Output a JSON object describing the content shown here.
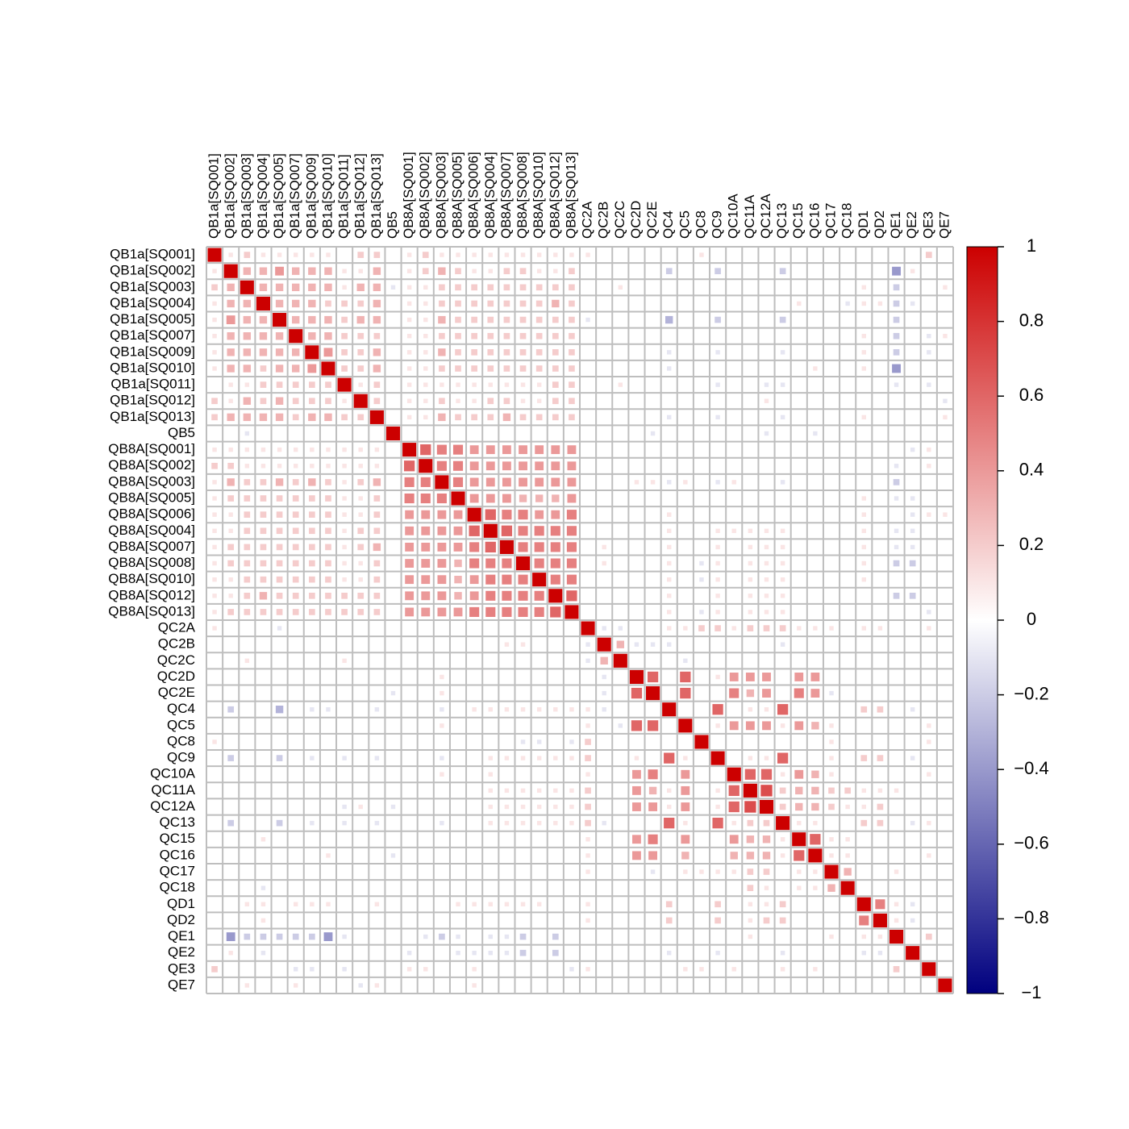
{
  "chart_data": {
    "type": "correlogram",
    "labels": [
      "QB1a[SQ001]",
      "QB1a[SQ002]",
      "QB1a[SQ003]",
      "QB1a[SQ004]",
      "QB1a[SQ005]",
      "QB1a[SQ007]",
      "QB1a[SQ009]",
      "QB1a[SQ010]",
      "QB1a[SQ011]",
      "QB1a[SQ012]",
      "QB1a[SQ013]",
      "QB5",
      "QB8A[SQ001]",
      "QB8A[SQ002]",
      "QB8A[SQ003]",
      "QB8A[SQ005]",
      "QB8A[SQ006]",
      "QB8A[SQ004]",
      "QB8A[SQ007]",
      "QB8A[SQ008]",
      "QB8A[SQ010]",
      "QB8A[SQ012]",
      "QB8A[SQ013]",
      "QC2A",
      "QC2B",
      "QC2C",
      "QC2D",
      "QC2E",
      "QC4",
      "QC5",
      "QC8",
      "QC9",
      "QC10A",
      "QC11A",
      "QC12A",
      "QC13",
      "QC15",
      "QC16",
      "QC17",
      "QC18",
      "QD1",
      "QD2",
      "QE1",
      "QE2",
      "QE3",
      "QE7"
    ],
    "values": [
      [
        1
      ],
      [
        0.1,
        1
      ],
      [
        0.2,
        0.3,
        1
      ],
      [
        0.1,
        0.3,
        0.3,
        1
      ],
      [
        0.1,
        0.4,
        0.3,
        0.3,
        1
      ],
      [
        0.1,
        0.3,
        0.3,
        0.3,
        0.3,
        1
      ],
      [
        0.1,
        0.3,
        0.3,
        0.3,
        0.3,
        0.3,
        1
      ],
      [
        0.1,
        0.3,
        0.3,
        0.2,
        0.3,
        0.3,
        0.4,
        1
      ],
      [
        0,
        0.1,
        0.1,
        0.2,
        0.2,
        0.2,
        0.2,
        0.2,
        1
      ],
      [
        0.2,
        0.1,
        0.3,
        0.2,
        0.3,
        0.2,
        0.2,
        0.2,
        0.1,
        1
      ],
      [
        0.2,
        0.3,
        0.3,
        0.3,
        0.3,
        0.2,
        0.3,
        0.3,
        0.2,
        0.2,
        1
      ],
      [
        0,
        0,
        -0.1,
        0,
        0,
        0,
        0,
        0,
        0,
        0,
        0,
        1
      ],
      [
        0.1,
        0.1,
        0.1,
        0.1,
        0.1,
        0.1,
        0.1,
        0.1,
        0.1,
        0.1,
        0.1,
        0,
        1
      ],
      [
        0.2,
        0.2,
        0.1,
        0.1,
        0.1,
        0.1,
        0.1,
        0.1,
        0.1,
        0.1,
        0.1,
        0,
        0.6,
        1
      ],
      [
        0.1,
        0.3,
        0.2,
        0.2,
        0.3,
        0.2,
        0.3,
        0.2,
        0.1,
        0.2,
        0.3,
        0,
        0.5,
        0.5,
        1
      ],
      [
        0.1,
        0.2,
        0.2,
        0.2,
        0.2,
        0.2,
        0.2,
        0.2,
        0.1,
        0.1,
        0.2,
        0,
        0.5,
        0.5,
        0.5,
        1
      ],
      [
        0.1,
        0.1,
        0.2,
        0.2,
        0.2,
        0.2,
        0.2,
        0.2,
        0.1,
        0.1,
        0.2,
        0,
        0.4,
        0.4,
        0.4,
        0.4,
        1
      ],
      [
        0.1,
        0.1,
        0.2,
        0.2,
        0.2,
        0.2,
        0.2,
        0.2,
        0.1,
        0.2,
        0.2,
        0,
        0.4,
        0.4,
        0.4,
        0.4,
        0.6,
        1
      ],
      [
        0.1,
        0.2,
        0.2,
        0.2,
        0.2,
        0.2,
        0.2,
        0.2,
        0.1,
        0.2,
        0.3,
        0,
        0.4,
        0.4,
        0.4,
        0.4,
        0.5,
        0.6,
        1
      ],
      [
        0.1,
        0.2,
        0.2,
        0.2,
        0.2,
        0.2,
        0.2,
        0.2,
        0.1,
        0.1,
        0.2,
        0,
        0.4,
        0.4,
        0.4,
        0.3,
        0.5,
        0.5,
        0.5,
        1
      ],
      [
        0.1,
        0.1,
        0.2,
        0.2,
        0.2,
        0.2,
        0.2,
        0.2,
        0.1,
        0.1,
        0.2,
        0,
        0.4,
        0.4,
        0.4,
        0.3,
        0.4,
        0.5,
        0.5,
        0.5,
        1
      ],
      [
        0.1,
        0.1,
        0.2,
        0.3,
        0.2,
        0.2,
        0.2,
        0.2,
        0.2,
        0.2,
        0.2,
        0,
        0.4,
        0.4,
        0.4,
        0.3,
        0.4,
        0.5,
        0.5,
        0.5,
        0.5,
        1
      ],
      [
        0.1,
        0.2,
        0.2,
        0.2,
        0.2,
        0.2,
        0.2,
        0.2,
        0.2,
        0.2,
        0.2,
        0,
        0.4,
        0.4,
        0.4,
        0.4,
        0.5,
        0.5,
        0.5,
        0.5,
        0.5,
        0.6,
        1
      ],
      [
        0.1,
        0,
        0,
        0,
        -0.1,
        0,
        0,
        0,
        0,
        0,
        0,
        0,
        0,
        0,
        0,
        0,
        0,
        0,
        0,
        0,
        0,
        0,
        0,
        1
      ],
      [
        0,
        0,
        0,
        0,
        0,
        0,
        0,
        0,
        0,
        0,
        0,
        0,
        0,
        0,
        0,
        0,
        0,
        0,
        0.1,
        0.1,
        0,
        0,
        0,
        -0.1,
        1
      ],
      [
        0,
        0,
        0.1,
        0,
        0,
        0,
        0,
        0,
        0.1,
        0,
        0,
        0,
        0,
        0,
        0,
        0,
        0,
        0,
        0,
        0,
        0,
        0,
        0,
        -0.1,
        0.3,
        1
      ],
      [
        0,
        0,
        0,
        0,
        0,
        0,
        0,
        0,
        0,
        0,
        0,
        0,
        0,
        0,
        0.1,
        0,
        0,
        0,
        0,
        0,
        0,
        0,
        0,
        0,
        -0.1,
        0,
        1
      ],
      [
        0,
        0,
        0,
        0,
        0,
        0,
        0,
        0,
        0,
        0,
        0,
        -0.1,
        0,
        0,
        0.1,
        0,
        0,
        0,
        0,
        0,
        0,
        0,
        0,
        0,
        -0.1,
        0,
        0.6,
        1
      ],
      [
        0,
        -0.2,
        0,
        0,
        -0.3,
        0,
        -0.1,
        -0.1,
        0,
        0,
        -0.1,
        0,
        0,
        0,
        -0.1,
        0,
        0.1,
        0.1,
        0.1,
        0.1,
        0.1,
        0.1,
        0.1,
        0.1,
        -0.1,
        0,
        0,
        0,
        1
      ],
      [
        0,
        0,
        0,
        0,
        0,
        0,
        0,
        0,
        0,
        0,
        0,
        0,
        0,
        0,
        0.1,
        0,
        0,
        0,
        0,
        0,
        0,
        0,
        0,
        0.1,
        0,
        -0.1,
        0.6,
        0.6,
        0,
        1
      ],
      [
        0.1,
        0,
        0,
        0,
        0,
        0,
        0,
        0,
        0,
        0,
        0,
        0,
        0,
        0,
        0,
        0,
        0,
        0,
        0,
        -0.1,
        -0.1,
        0,
        -0.1,
        0.2,
        0,
        0,
        0,
        0,
        0,
        0,
        1
      ],
      [
        0,
        -0.2,
        0,
        0,
        -0.2,
        0,
        -0.1,
        0,
        -0.1,
        0,
        -0.1,
        0,
        0,
        0,
        -0.1,
        0,
        0,
        0.1,
        0.1,
        0.1,
        0.1,
        0.1,
        0.1,
        0.2,
        0,
        0,
        0.1,
        0,
        0.6,
        0.1,
        0,
        1
      ],
      [
        0,
        0,
        0,
        0,
        0,
        0,
        0,
        0,
        0,
        0,
        0,
        0,
        0,
        0,
        0.1,
        0,
        0,
        0.1,
        0,
        0,
        0,
        0,
        0,
        0.1,
        0,
        0,
        0.4,
        0.5,
        0,
        0.4,
        0,
        0,
        1
      ],
      [
        0,
        0,
        0,
        0,
        0,
        0,
        0,
        0,
        0,
        0,
        0,
        0,
        0,
        0,
        0,
        0,
        0,
        0.1,
        0.1,
        0.1,
        0.1,
        0.1,
        0.1,
        0.2,
        0,
        0,
        0.4,
        0.3,
        0.1,
        0.4,
        0,
        0.1,
        0.6,
        1
      ],
      [
        0,
        0,
        0,
        0,
        0,
        0,
        0,
        0,
        -0.1,
        0.1,
        0,
        -0.1,
        0,
        0,
        0,
        0,
        0,
        0.1,
        0.1,
        0.1,
        0.1,
        0.1,
        0.1,
        0.2,
        0,
        0,
        0.4,
        0.4,
        0.1,
        0.4,
        0,
        0.1,
        0.6,
        0.7,
        1
      ],
      [
        0,
        -0.2,
        0,
        0,
        -0.2,
        0,
        -0.1,
        0,
        -0.1,
        0,
        -0.1,
        0,
        0,
        0,
        -0.1,
        0,
        0,
        0.1,
        0.1,
        0.1,
        0.1,
        0.1,
        0.1,
        0.2,
        -0.1,
        0,
        0,
        0,
        0.6,
        0.1,
        0,
        0.6,
        0.1,
        0.2,
        0.2,
        1
      ],
      [
        0,
        0,
        0,
        0.1,
        0,
        0,
        0,
        0,
        0,
        0,
        0,
        0,
        0,
        0,
        0,
        0,
        0,
        0,
        0,
        0,
        0,
        0,
        0,
        0.1,
        0,
        0,
        0.4,
        0.5,
        0,
        0.4,
        0,
        0,
        0.4,
        0.3,
        0.3,
        0.1,
        1
      ],
      [
        0,
        0,
        0,
        0,
        0,
        0,
        0,
        0.1,
        0,
        0,
        0,
        -0.1,
        0,
        0,
        0,
        0,
        0,
        0,
        0,
        0,
        0,
        0,
        0,
        0.1,
        0,
        0,
        0.4,
        0.4,
        0,
        0.3,
        0,
        0,
        0.3,
        0.3,
        0.3,
        0.1,
        0.6,
        1
      ],
      [
        0,
        0,
        0,
        0,
        0,
        0,
        0,
        0,
        0,
        0,
        0,
        0,
        0,
        0,
        0,
        0,
        0,
        0,
        0,
        0,
        0,
        0,
        0,
        0.1,
        0,
        0,
        0,
        -0.1,
        0,
        0.1,
        0.1,
        0.1,
        0.1,
        0.2,
        0.2,
        0,
        0.1,
        0.1,
        1
      ],
      [
        0,
        0,
        0,
        -0.1,
        0,
        0,
        0,
        0,
        0,
        0,
        0,
        0,
        0,
        0,
        0,
        0,
        0,
        0,
        0,
        0,
        0,
        0,
        0,
        0,
        0,
        0,
        0,
        0,
        0,
        0,
        0,
        0,
        0,
        0.2,
        0.1,
        0,
        0.1,
        0.1,
        0.3,
        1
      ],
      [
        0,
        0,
        0.1,
        0.1,
        0,
        0.1,
        0.1,
        0.1,
        0,
        0,
        0.1,
        0,
        0,
        0,
        0,
        0.1,
        0.1,
        0.1,
        0.1,
        0.1,
        0.1,
        0,
        0,
        0.1,
        0,
        0,
        0,
        0,
        0.2,
        0,
        0,
        0.2,
        0,
        0.1,
        0.1,
        0.2,
        0,
        0,
        0,
        0,
        1
      ],
      [
        0,
        0,
        0,
        0.1,
        0,
        0,
        0,
        0,
        0,
        0,
        0,
        0,
        0,
        0,
        0,
        0,
        0,
        0,
        0,
        0,
        0,
        0,
        0,
        0.1,
        0,
        0,
        0,
        0,
        0.2,
        0,
        0,
        0.2,
        0,
        0.1,
        0.2,
        0.2,
        0,
        0,
        0,
        0,
        0.5,
        1
      ],
      [
        0,
        -0.4,
        -0.2,
        -0.2,
        -0.2,
        -0.2,
        -0.2,
        -0.4,
        -0.1,
        0,
        0,
        0,
        0,
        -0.1,
        -0.2,
        -0.1,
        0,
        -0.1,
        -0.1,
        -0.2,
        0,
        -0.2,
        0,
        0,
        0,
        0,
        0,
        0,
        0,
        0,
        0,
        0,
        0,
        0.1,
        0,
        0,
        0,
        0,
        0.1,
        0,
        0.1,
        0.1,
        1
      ],
      [
        0,
        0.1,
        0,
        -0.1,
        0,
        0,
        0,
        0,
        0,
        0,
        0,
        0,
        -0.1,
        0,
        0,
        -0.1,
        -0.1,
        -0.1,
        -0.1,
        -0.2,
        0,
        -0.2,
        0,
        0,
        0,
        0,
        0,
        0,
        -0.1,
        0,
        0,
        -0.1,
        0,
        0,
        0,
        -0.1,
        0,
        0,
        0,
        0,
        -0.1,
        -0.1,
        0,
        1
      ],
      [
        0.2,
        0,
        0,
        0,
        0,
        -0.1,
        -0.1,
        0,
        -0.1,
        0,
        0,
        0,
        0.1,
        0.1,
        0,
        0,
        0.1,
        0,
        0,
        0,
        0,
        0,
        -0.1,
        0.1,
        0,
        0,
        0,
        0,
        0,
        0.1,
        0.1,
        0,
        0.1,
        0,
        0,
        0.1,
        0,
        0.1,
        0,
        0,
        0,
        0,
        0.2,
        0,
        1
      ],
      [
        0,
        0,
        0.1,
        0,
        0,
        0.1,
        0,
        0,
        0,
        -0.1,
        0.1,
        0,
        0,
        0,
        0,
        0,
        0.1,
        0,
        0,
        0,
        0,
        0,
        0,
        0,
        0,
        0,
        0,
        0,
        0,
        0,
        0,
        0,
        0,
        0,
        0,
        0,
        0,
        0,
        0,
        0,
        0,
        0,
        0,
        0,
        0,
        1
      ]
    ],
    "colors": [
      "#00007F",
      "#FFFFFF",
      "#CC0000"
    ],
    "clim": [
      -1,
      1
    ],
    "colorbar_ticks": [
      1,
      0.8,
      0.6,
      0.4,
      0.2,
      0,
      {
        "value": -0.2,
        "label": "−0.2"
      },
      {
        "value": -0.4,
        "label": "−0.4"
      },
      {
        "value": -0.6,
        "label": "−0.6"
      },
      {
        "value": -0.8,
        "label": "−0.8"
      },
      {
        "value": -1,
        "label": "−1"
      }
    ]
  }
}
